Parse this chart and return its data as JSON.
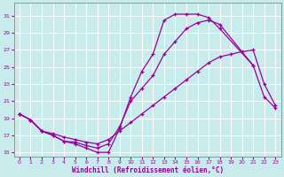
{
  "xlabel": "Windchill (Refroidissement éolien,°C)",
  "bg_color": "#c8ecec",
  "line_color": "#990099",
  "grid_color": "#ffffff",
  "xlim": [
    -0.5,
    23.5
  ],
  "ylim": [
    14.5,
    32.5
  ],
  "xticks": [
    0,
    1,
    2,
    3,
    4,
    5,
    6,
    7,
    8,
    9,
    10,
    11,
    12,
    13,
    14,
    15,
    16,
    17,
    18,
    19,
    20,
    21,
    22,
    23
  ],
  "yticks": [
    15,
    17,
    19,
    21,
    23,
    25,
    27,
    29,
    31
  ],
  "curve1_x": [
    0,
    1,
    2,
    3,
    4,
    5,
    6,
    7,
    8,
    9,
    10,
    11,
    12,
    13,
    14,
    15,
    16,
    17,
    18,
    21
  ],
  "curve1_y": [
    19.5,
    18.8,
    17.5,
    17.0,
    16.3,
    16.0,
    15.5,
    15.0,
    15.0,
    17.8,
    21.5,
    24.5,
    26.5,
    30.5,
    31.2,
    31.2,
    31.2,
    30.8,
    29.5,
    25.2
  ],
  "curve2_x": [
    0,
    1,
    2,
    3,
    4,
    5,
    6,
    7,
    8,
    9,
    10,
    11,
    12,
    13,
    14,
    15,
    16,
    17,
    18,
    21,
    22,
    23
  ],
  "curve2_y": [
    19.5,
    18.8,
    17.5,
    17.0,
    16.3,
    16.2,
    15.8,
    15.5,
    16.0,
    18.0,
    21.0,
    22.5,
    24.0,
    26.5,
    28.0,
    29.5,
    30.2,
    30.5,
    30.0,
    25.2,
    21.5,
    20.2
  ],
  "curve3_x": [
    0,
    1,
    2,
    3,
    4,
    5,
    6,
    7,
    8,
    9,
    10,
    11,
    12,
    13,
    14,
    15,
    16,
    17,
    18,
    19,
    20,
    21,
    22,
    23
  ],
  "curve3_y": [
    19.5,
    18.8,
    17.5,
    17.2,
    16.8,
    16.5,
    16.2,
    16.0,
    16.5,
    17.5,
    18.5,
    19.5,
    20.5,
    21.5,
    22.5,
    23.5,
    24.5,
    25.5,
    26.2,
    26.5,
    26.8,
    27.0,
    23.0,
    20.5
  ],
  "marker": "+"
}
